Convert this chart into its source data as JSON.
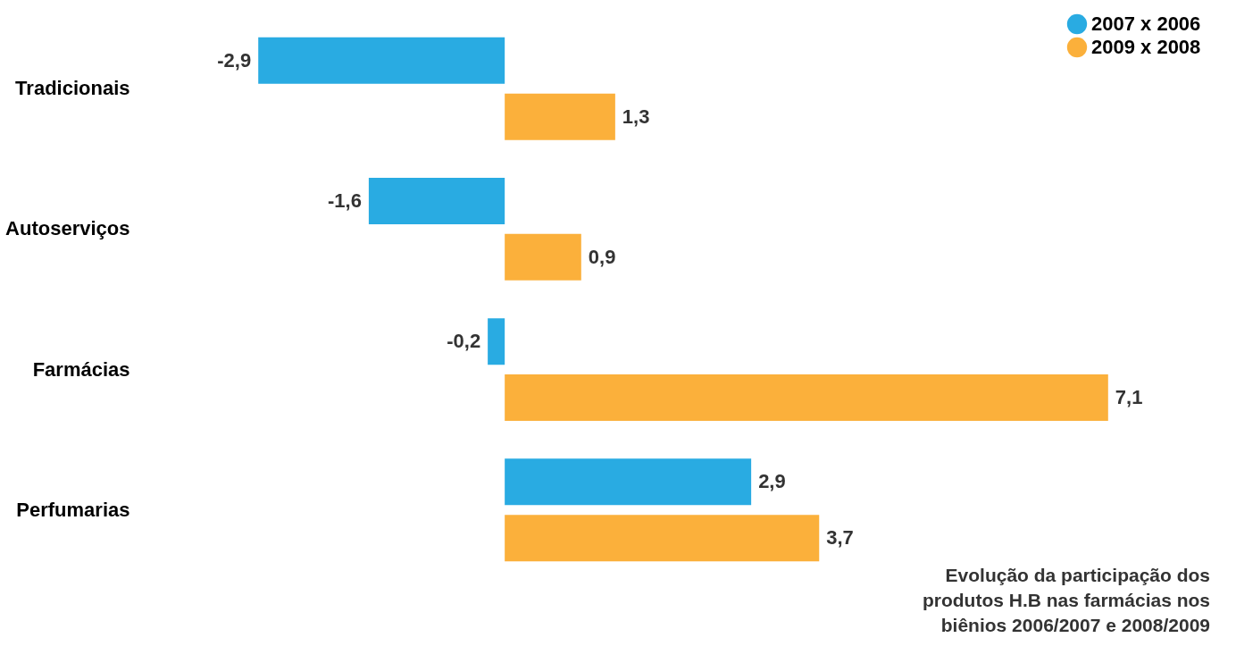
{
  "chart_data": {
    "type": "bar",
    "orientation": "horizontal",
    "categories": [
      "Tradicionais",
      "Autoserviços",
      "Farmácias",
      "Perfumarias"
    ],
    "series": [
      {
        "name": "2007 x 2006",
        "color": "#29abe2",
        "values": [
          -2.9,
          -1.6,
          -0.2,
          2.9
        ],
        "value_labels": [
          "-2,9",
          "-1,6",
          "-0,2",
          "2,9"
        ]
      },
      {
        "name": "2009 x 2008",
        "color": "#fbb03b",
        "values": [
          1.3,
          0.9,
          7.1,
          3.7
        ],
        "value_labels": [
          "1,3",
          "0,9",
          "7,1",
          "3,7"
        ]
      }
    ],
    "legend": "top right",
    "grid": false,
    "annotations": [
      "Evolução da participação dos produtos H.B nas farmácias nos biênios 2006/2007 e 2008/2009"
    ]
  }
}
